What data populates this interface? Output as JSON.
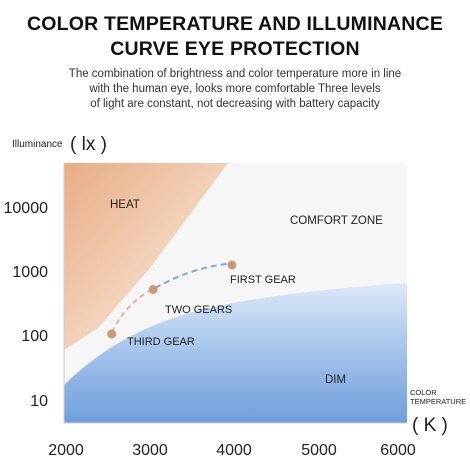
{
  "title_line1": "COLOR TEMPERATURE AND ILLUMINANCE",
  "title_line2": "CURVE EYE PROTECTION",
  "description": [
    "The combination of brightness and color temperature more in line",
    "with the human eye, looks more comfortable Three levels",
    "of light are constant, not decreasing with battery capacity"
  ],
  "colors": {
    "heat_zone": "#e9b58f",
    "dim_zone": "#6fa0db",
    "gear_point": "#c99a74",
    "curve_orange": "#e4b49a",
    "curve_blue": "#7ea6d8"
  },
  "chart_data": {
    "type": "scatter",
    "ylabel": "Illuminance",
    "ylabel_unit": "( lx )",
    "xlabel": "COLOR TEMPERATURE",
    "xlabel_line1": "COLOR",
    "xlabel_line2": "TEMPERATURE",
    "xlabel_unit": "( K )",
    "x_ticks": [
      "2000",
      "3000",
      "4000",
      "5000",
      "6000"
    ],
    "y_ticks": [
      "10000",
      "1000",
      "100",
      "10"
    ],
    "y_scale": "log",
    "xlim": [
      2000,
      6000
    ],
    "ylim": [
      3,
      50000
    ],
    "regions": [
      {
        "name": "HEAT",
        "label": "HEAT"
      },
      {
        "name": "COMFORT ZONE",
        "label": "COMFORT ZONE"
      },
      {
        "name": "DIM",
        "label": "DIM"
      }
    ],
    "points": [
      {
        "label": "THIRD GEAR",
        "x": 2550,
        "y": 110
      },
      {
        "label": "TWO GEARS",
        "x": 3050,
        "y": 540
      },
      {
        "label": "FIRST GEAR",
        "x": 4000,
        "y": 1300
      }
    ]
  }
}
